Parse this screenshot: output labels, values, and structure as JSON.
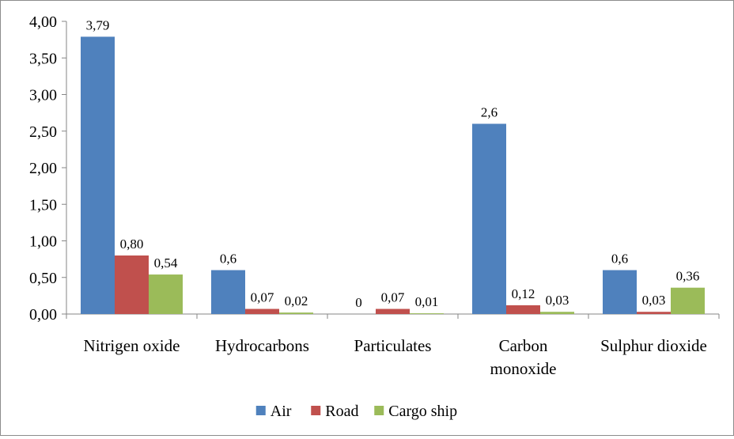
{
  "chart_data": {
    "type": "bar",
    "title": "",
    "xlabel": "",
    "ylabel": "",
    "categories": [
      [
        "Nitrigen oxide"
      ],
      [
        "Hydrocarbons"
      ],
      [
        "Particulates"
      ],
      [
        "Carbon",
        "monoxide"
      ],
      [
        "Sulphur dioxide"
      ]
    ],
    "series": [
      {
        "name": "Air",
        "color": "#4F81BD",
        "values": [
          3.79,
          0.6,
          0,
          2.6,
          0.6
        ],
        "labels": [
          "3,79",
          "0,6",
          "0",
          "2,6",
          "0,6"
        ]
      },
      {
        "name": "Road",
        "color": "#C0504D",
        "values": [
          0.8,
          0.07,
          0.07,
          0.12,
          0.03
        ],
        "labels": [
          "0,80",
          "0,07",
          "0,07",
          "0,12",
          "0,03"
        ]
      },
      {
        "name": "Cargo ship",
        "color": "#9BBB59",
        "values": [
          0.54,
          0.02,
          0.01,
          0.03,
          0.36
        ],
        "labels": [
          "0,54",
          "0,02",
          "0,01",
          "0,03",
          "0,36"
        ]
      }
    ],
    "ylim": [
      0,
      4
    ],
    "yticks": [
      0,
      0.5,
      1.0,
      1.5,
      2.0,
      2.5,
      3.0,
      3.5,
      4.0
    ],
    "ytick_labels": [
      "0,00",
      "0,50",
      "1,00",
      "1,50",
      "2,00",
      "2,50",
      "3,00",
      "3,50",
      "4,00"
    ],
    "grid": false,
    "legend": "bottom"
  }
}
